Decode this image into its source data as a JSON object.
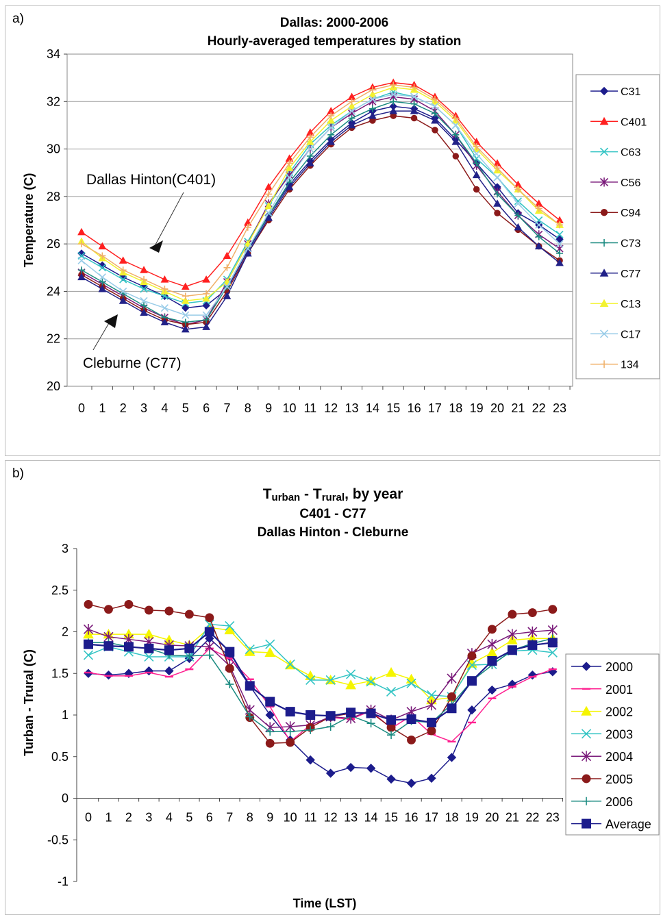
{
  "chart_data": [
    {
      "panel_label": "a)",
      "type": "line",
      "title": "Dallas:  2000-2006",
      "subtitle": "Hourly-averaged temperatures by station",
      "xlabel": "",
      "ylabel": "Temperature (C)",
      "ylim": [
        20,
        34
      ],
      "yticks": [
        "20",
        "22",
        "24",
        "26",
        "28",
        "30",
        "32",
        "34"
      ],
      "x": [
        "0",
        "1",
        "2",
        "3",
        "4",
        "5",
        "6",
        "7",
        "8",
        "9",
        "10",
        "11",
        "12",
        "13",
        "14",
        "15",
        "16",
        "17",
        "18",
        "19",
        "20",
        "21",
        "22",
        "23"
      ],
      "grid": "horizontal",
      "legend_position": "right",
      "annotations": [
        "Dallas Hinton(C401)",
        "Cleburne (C77)"
      ],
      "series": [
        {
          "name": "C31",
          "color": "#1c1c8c",
          "marker": "diamond",
          "values": [
            25.6,
            25.1,
            24.6,
            24.2,
            23.8,
            23.3,
            23.4,
            24.1,
            25.7,
            27.2,
            28.5,
            29.5,
            30.4,
            31.1,
            31.6,
            31.8,
            31.7,
            31.3,
            30.4,
            29.4,
            28.4,
            27.3,
            26.8,
            26.2
          ]
        },
        {
          "name": "C401",
          "color": "#ff2020",
          "marker": "triangle",
          "values": [
            26.5,
            25.9,
            25.3,
            24.9,
            24.5,
            24.2,
            24.5,
            25.5,
            26.9,
            28.4,
            29.6,
            30.7,
            31.6,
            32.2,
            32.6,
            32.8,
            32.7,
            32.2,
            31.4,
            30.3,
            29.4,
            28.5,
            27.7,
            27.0
          ]
        },
        {
          "name": "C63",
          "color": "#33c4c4",
          "marker": "x",
          "values": [
            25.5,
            25.0,
            24.5,
            24.1,
            23.8,
            23.5,
            23.6,
            24.5,
            26.1,
            27.6,
            29.0,
            30.2,
            31.0,
            31.6,
            32.1,
            32.4,
            32.2,
            31.8,
            31.0,
            29.6,
            28.8,
            27.8,
            27.0,
            26.4
          ]
        },
        {
          "name": "C56",
          "color": "#7a1a7a",
          "marker": "star",
          "values": [
            24.8,
            24.3,
            23.8,
            23.3,
            22.9,
            22.6,
            22.8,
            24.4,
            26.0,
            27.7,
            28.9,
            30.0,
            30.9,
            31.5,
            32.0,
            32.2,
            32.1,
            31.6,
            30.6,
            29.3,
            28.2,
            27.2,
            26.4,
            25.8
          ]
        },
        {
          "name": "C94",
          "color": "#8b1a1a",
          "marker": "circle",
          "values": [
            24.7,
            24.2,
            23.7,
            23.2,
            22.8,
            22.6,
            22.7,
            24.0,
            25.6,
            27.0,
            28.3,
            29.3,
            30.2,
            30.9,
            31.2,
            31.4,
            31.3,
            30.8,
            29.7,
            28.3,
            27.3,
            26.6,
            25.9,
            25.3
          ]
        },
        {
          "name": "C73",
          "color": "#1a8a80",
          "marker": "plus",
          "values": [
            24.9,
            24.4,
            23.9,
            23.4,
            22.9,
            22.7,
            22.8,
            24.2,
            25.8,
            27.2,
            28.6,
            29.7,
            30.6,
            31.3,
            31.7,
            32.0,
            31.9,
            31.5,
            30.6,
            29.4,
            28.1,
            27.2,
            26.3,
            25.6
          ]
        },
        {
          "name": "C77",
          "color": "#222288",
          "marker": "triangle",
          "values": [
            24.6,
            24.1,
            23.6,
            23.1,
            22.7,
            22.4,
            22.5,
            23.8,
            25.6,
            27.1,
            28.4,
            29.4,
            30.3,
            31.0,
            31.4,
            31.6,
            31.6,
            31.2,
            30.3,
            28.9,
            27.7,
            26.7,
            25.9,
            25.2
          ]
        },
        {
          "name": "C13",
          "color": "#f2f230",
          "marker": "triangle",
          "values": [
            26.1,
            25.4,
            24.8,
            24.4,
            24.0,
            23.6,
            23.7,
            24.4,
            26.0,
            27.6,
            29.2,
            30.3,
            31.2,
            31.8,
            32.3,
            32.6,
            32.5,
            32.0,
            31.2,
            30.0,
            29.1,
            28.3,
            27.4,
            26.8
          ]
        },
        {
          "name": "C17",
          "color": "#99cce8",
          "marker": "x",
          "values": [
            25.3,
            24.6,
            24.0,
            23.6,
            23.3,
            23.0,
            23.0,
            24.2,
            25.8,
            27.3,
            28.8,
            30.0,
            30.9,
            31.6,
            32.1,
            32.3,
            32.2,
            31.8,
            31.0,
            29.8,
            28.8,
            27.7,
            26.8,
            26.0
          ]
        },
        {
          "name": "134",
          "color": "#f0b068",
          "marker": "plus",
          "values": [
            26.0,
            25.5,
            24.9,
            24.5,
            24.1,
            23.8,
            23.9,
            25.0,
            26.7,
            28.1,
            29.4,
            30.5,
            31.4,
            32.0,
            32.5,
            32.7,
            32.6,
            32.1,
            31.3,
            30.1,
            29.2,
            28.3,
            27.5,
            26.8
          ]
        }
      ]
    },
    {
      "panel_label": "b)",
      "type": "line",
      "title_main": "T",
      "title_sub1": "urban",
      "title_mid": " - T",
      "title_sub2": "rural",
      "title_end": ", by year",
      "subtitle1": "C401 - C77",
      "subtitle2": "Dallas Hinton - Cleburne",
      "xlabel": "Time (LST)",
      "ylabel": "Turban - Trural (C)",
      "ylim": [
        -1,
        3
      ],
      "yticks": [
        "-1",
        "-0.5",
        "0",
        "0.5",
        "1",
        "1.5",
        "2",
        "2.5",
        "3"
      ],
      "x": [
        "0",
        "1",
        "2",
        "3",
        "4",
        "5",
        "6",
        "7",
        "8",
        "9",
        "10",
        "11",
        "12",
        "13",
        "14",
        "15",
        "16",
        "17",
        "18",
        "19",
        "20",
        "21",
        "22",
        "23"
      ],
      "grid": "none",
      "legend_position": "right",
      "series": [
        {
          "name": "2000",
          "color": "#1c1c8c",
          "marker": "diamond",
          "values": [
            1.5,
            1.48,
            1.5,
            1.53,
            1.53,
            1.68,
            1.92,
            1.7,
            1.35,
            1.0,
            0.7,
            0.46,
            0.3,
            0.37,
            0.36,
            0.23,
            0.18,
            0.24,
            0.49,
            1.06,
            1.3,
            1.37,
            1.48,
            1.52
          ]
        },
        {
          "name": "2001",
          "color": "#ff2090",
          "marker": "dash",
          "values": [
            1.51,
            1.47,
            1.47,
            1.51,
            1.46,
            1.55,
            1.8,
            1.68,
            1.43,
            1.1,
            0.68,
            0.88,
            0.97,
            0.95,
            1.05,
            0.84,
            0.99,
            0.77,
            0.68,
            0.91,
            1.2,
            1.34,
            1.46,
            1.55
          ]
        },
        {
          "name": "2002",
          "color": "#f5f500",
          "marker": "triangle",
          "values": [
            1.97,
            1.97,
            1.97,
            1.97,
            1.9,
            1.84,
            2.05,
            2.02,
            1.76,
            1.75,
            1.6,
            1.47,
            1.42,
            1.36,
            1.41,
            1.51,
            1.43,
            1.18,
            1.21,
            1.62,
            1.75,
            1.9,
            1.92,
            1.92
          ]
        },
        {
          "name": "2003",
          "color": "#33c4c4",
          "marker": "x",
          "values": [
            1.72,
            1.82,
            1.76,
            1.7,
            1.7,
            1.7,
            2.09,
            2.07,
            1.79,
            1.85,
            1.61,
            1.42,
            1.42,
            1.49,
            1.4,
            1.28,
            1.38,
            1.24,
            1.22,
            1.6,
            1.61,
            1.77,
            1.78,
            1.75
          ]
        },
        {
          "name": "2004",
          "color": "#7a1a7a",
          "marker": "star",
          "values": [
            2.03,
            1.94,
            1.91,
            1.88,
            1.84,
            1.83,
            1.82,
            1.59,
            1.06,
            0.85,
            0.86,
            0.88,
            0.98,
            0.96,
            1.06,
            0.94,
            1.04,
            1.12,
            1.44,
            1.74,
            1.85,
            1.97,
            2.0,
            2.02
          ]
        },
        {
          "name": "2005",
          "color": "#8b1a1a",
          "marker": "circle",
          "values": [
            2.33,
            2.27,
            2.33,
            2.26,
            2.25,
            2.21,
            2.17,
            1.56,
            0.97,
            0.66,
            0.67,
            0.85,
            0.98,
            1.02,
            1.03,
            0.85,
            0.7,
            0.81,
            1.22,
            1.71,
            2.03,
            2.21,
            2.23,
            2.27
          ]
        },
        {
          "name": "2006",
          "color": "#1a8a80",
          "marker": "plus",
          "values": [
            1.87,
            1.87,
            1.82,
            1.8,
            1.72,
            1.71,
            1.72,
            1.37,
            0.98,
            0.8,
            0.8,
            0.82,
            0.86,
            0.99,
            0.9,
            0.76,
            0.93,
            0.91,
            1.13,
            1.41,
            1.6,
            1.78,
            1.86,
            1.92
          ]
        },
        {
          "name": "Average",
          "color": "#1c1c8c",
          "marker": "square",
          "values": [
            1.85,
            1.83,
            1.82,
            1.8,
            1.78,
            1.8,
            2.0,
            1.76,
            1.35,
            1.16,
            1.04,
            1.0,
            0.99,
            1.03,
            1.02,
            0.94,
            0.95,
            0.91,
            1.08,
            1.41,
            1.65,
            1.78,
            1.84,
            1.87
          ]
        }
      ]
    }
  ]
}
